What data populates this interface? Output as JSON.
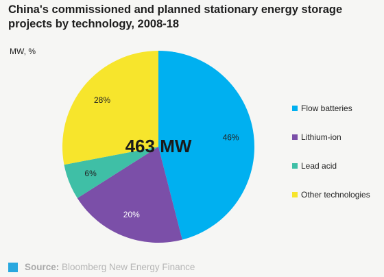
{
  "chart_data": {
    "type": "pie",
    "title": "China's commissioned and planned stationary energy storage projects by technology, 2008-18",
    "unit_label": "MW, %",
    "center_label": "463 MW",
    "categories": [
      "Flow batteries",
      "Lithium-ion",
      "Lead acid",
      "Other technologies"
    ],
    "values": [
      46,
      20,
      6,
      28
    ],
    "value_labels": [
      "46%",
      "20%",
      "6%",
      "28%"
    ],
    "colors": [
      "#00b0f0",
      "#7b4fa8",
      "#3fbfa6",
      "#f7e52c"
    ],
    "legend_position": "right"
  },
  "source": {
    "label": "Source:",
    "text": " Bloomberg New Energy Finance"
  }
}
